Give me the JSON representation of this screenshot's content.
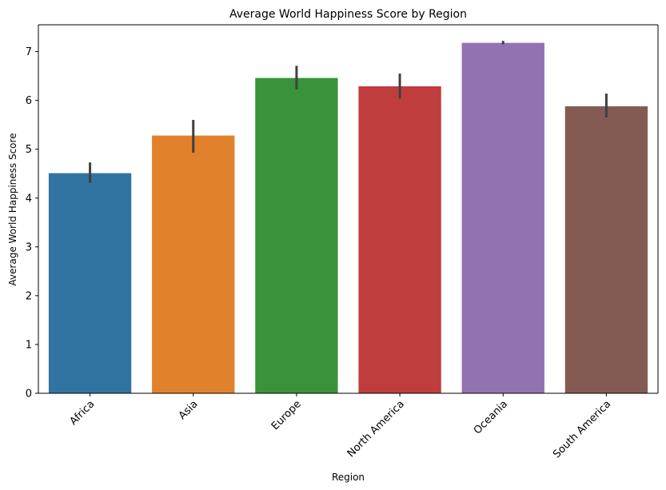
{
  "chart_data": {
    "type": "bar",
    "title": "Average World Happiness Score by Region",
    "xlabel": "Region",
    "ylabel": "Average World Happiness Score",
    "categories": [
      "Africa",
      "Asia",
      "Europe",
      "North America",
      "Oceania",
      "South America"
    ],
    "values": [
      4.51,
      5.28,
      6.46,
      6.29,
      7.18,
      5.88
    ],
    "error_low": [
      4.31,
      4.93,
      6.23,
      6.04,
      7.15,
      5.65
    ],
    "error_high": [
      4.73,
      5.6,
      6.71,
      6.55,
      7.22,
      6.14
    ],
    "colors": [
      "#3274a1",
      "#e1812c",
      "#3a923a",
      "#c03d3e",
      "#9372b2",
      "#845b53"
    ],
    "error_bar_color": "#404040",
    "ylim": [
      0,
      7.55
    ],
    "yticks": [
      "0",
      "1",
      "2",
      "3",
      "4",
      "5",
      "6",
      "7"
    ],
    "grid": false,
    "x_tick_rotation": -45
  }
}
